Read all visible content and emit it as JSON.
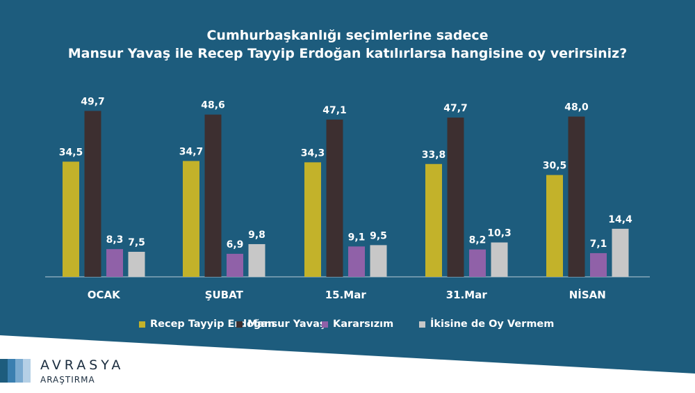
{
  "title_lines": [
    "Cumhurbaşkanlığı seçimlerine sadece",
    "Mansur Yavaş ile Recep Tayyip Erdoğan katılırlarsa hangisine oy verirsiniz?"
  ],
  "chart_data": {
    "type": "bar",
    "title": "Cumhurbaşkanlığı seçimlerine sadece Mansur Yavaş ile Recep Tayyip Erdoğan katılırlarsa hangisine oy verirsiniz?",
    "categories": [
      "OCAK",
      "ŞUBAT",
      "15.Mar",
      "31.Mar",
      "NİSAN"
    ],
    "series": [
      {
        "name": "Recep Tayyip Erdoğan",
        "color": "#c3b22a",
        "values": [
          34.5,
          34.7,
          34.3,
          33.8,
          30.5
        ],
        "labels": [
          "34,5",
          "34,7",
          "34,3",
          "33,8",
          "30,5"
        ]
      },
      {
        "name": "Mansur Yavaş",
        "color": "#3d2f30",
        "values": [
          49.7,
          48.6,
          47.1,
          47.7,
          48.0
        ],
        "labels": [
          "49,7",
          "48,6",
          "47,1",
          "47,7",
          "48,0"
        ]
      },
      {
        "name": "Kararsızım",
        "color": "#9061a8",
        "values": [
          8.3,
          6.9,
          9.1,
          8.2,
          7.1
        ],
        "labels": [
          "8,3",
          "6,9",
          "9,1",
          "8,2",
          "7,1"
        ]
      },
      {
        "name": "İkisine de Oy Vermem",
        "color": "#c7c7c7",
        "values": [
          7.5,
          9.8,
          9.5,
          10.3,
          14.4
        ],
        "labels": [
          "7,5",
          "9,8",
          "9,5",
          "10,3",
          "14,4"
        ]
      }
    ],
    "ylim": [
      0,
      50
    ],
    "grid": false,
    "legend_position": "bottom",
    "xlabel": "",
    "ylabel": ""
  },
  "colors": {
    "background": "#1d5c7d",
    "text": "#ffffff",
    "axis": "#b9cbd6",
    "footer": "#ffffff",
    "logo_blocks": [
      "#1d5c7d",
      "#3a7fb0",
      "#7aaad0",
      "#b5d0e6"
    ]
  },
  "brand": {
    "name": "AVRASYA",
    "subtitle": "ARAŞTIRMA"
  }
}
